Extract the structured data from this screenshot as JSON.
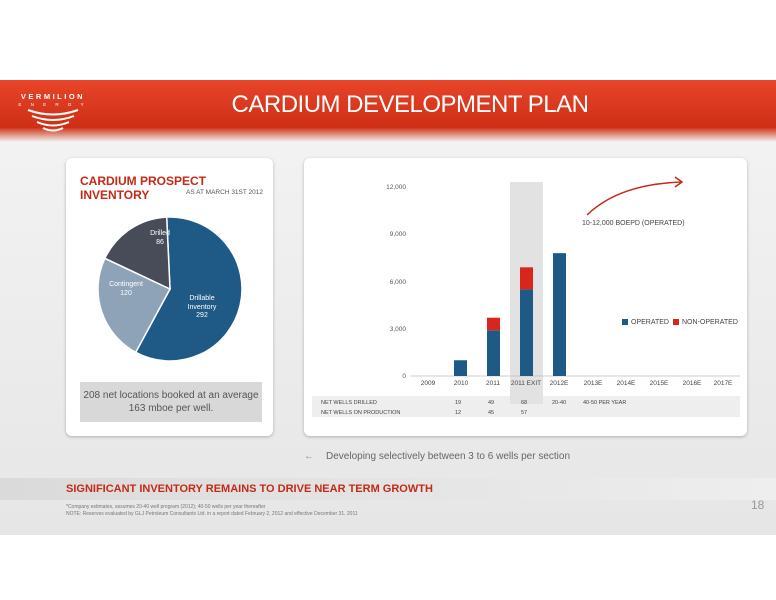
{
  "header": {
    "logo_name": "VERMILION",
    "logo_sub": "E N E R G Y",
    "title": "CARDIUM DEVELOPMENT PLAN"
  },
  "inventory": {
    "title": "CARDIUM PROSPECT INVENTORY",
    "subtitle": "AS AT MARCH 31ST 2012",
    "slices": [
      {
        "label": "Drillable Inventory",
        "value": 292,
        "color": "#1f5a86"
      },
      {
        "label": "Contingent",
        "value": 120,
        "color": "#8fa3b8"
      },
      {
        "label": "Drilled",
        "value": 86,
        "color": "#474c58"
      }
    ],
    "callout": "208 net locations booked at an average 163 mboe per well."
  },
  "chart_data": {
    "type": "bar",
    "categories": [
      "2009",
      "2010",
      "2011",
      "2011 EXIT",
      "2012E",
      "2013E",
      "2014E",
      "2015E",
      "2016E",
      "2017E"
    ],
    "series": [
      {
        "name": "OPERATED",
        "color": "#1f5a86",
        "values": [
          0,
          1000,
          2900,
          5500,
          7800,
          null,
          null,
          null,
          null,
          null
        ]
      },
      {
        "name": "NON-OPERATED",
        "color": "#d8261c",
        "values": [
          0,
          0,
          800,
          1400,
          0,
          null,
          null,
          null,
          null,
          null
        ]
      }
    ],
    "yticks": [
      "12,000",
      "9,000",
      "6,000",
      "3,000",
      "0"
    ],
    "ylim": [
      0,
      12000
    ],
    "annotation": "10-12,000 BOEPD (OPERATED)",
    "legend_position": "right"
  },
  "wells_table": {
    "rows": [
      {
        "label": "NET WELLS DRILLED",
        "values": [
          "19",
          "49",
          "68",
          "20-40",
          "40-50 PER YEAR"
        ]
      },
      {
        "label": "NET WELLS ON PRODUCTION",
        "values": [
          "12",
          "45",
          "57",
          "",
          ""
        ]
      }
    ]
  },
  "note": {
    "arrow": "←",
    "text": "Developing selectively between 3 to 6 wells per section"
  },
  "footer": {
    "headline": "SIGNIFICANT INVENTORY REMAINS TO DRIVE NEAR TERM GROWTH",
    "line1": "*Company estimates, assumes 20-40 well program (2012); 40-50 wells per year thereafter",
    "line2": "NOTE: Reserves evaluated by GLJ Petroleum Consultants Ltd. in a report dated February 2, 2012 and effective December 31, 2011",
    "page": "18"
  }
}
